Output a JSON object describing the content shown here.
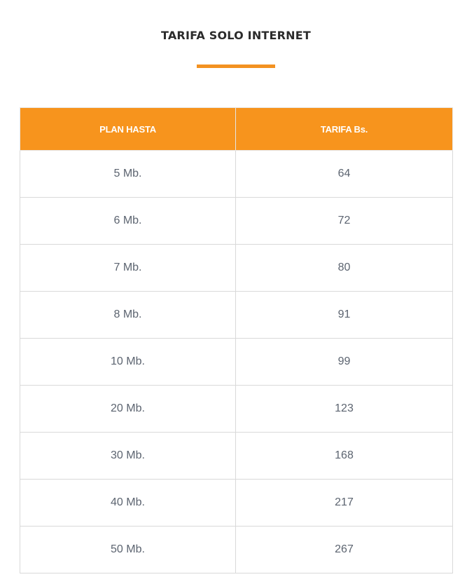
{
  "title": "TARIFA SOLO INTERNET",
  "colors": {
    "accent": "#f7941d",
    "header_text": "#ffffff",
    "cell_text": "#5c6470",
    "border": "#d9d9d9"
  },
  "table": {
    "headers": [
      "PLAN HASTA",
      "TARIFA Bs."
    ],
    "rows": [
      {
        "plan": "5 Mb.",
        "tarifa": "64"
      },
      {
        "plan": "6 Mb.",
        "tarifa": "72"
      },
      {
        "plan": "7 Mb.",
        "tarifa": "80"
      },
      {
        "plan": "8 Mb.",
        "tarifa": "91"
      },
      {
        "plan": "10 Mb.",
        "tarifa": "99"
      },
      {
        "plan": "20 Mb.",
        "tarifa": "123"
      },
      {
        "plan": "30 Mb.",
        "tarifa": "168"
      },
      {
        "plan": "40 Mb.",
        "tarifa": "217"
      },
      {
        "plan": "50 Mb.",
        "tarifa": "267"
      }
    ]
  }
}
